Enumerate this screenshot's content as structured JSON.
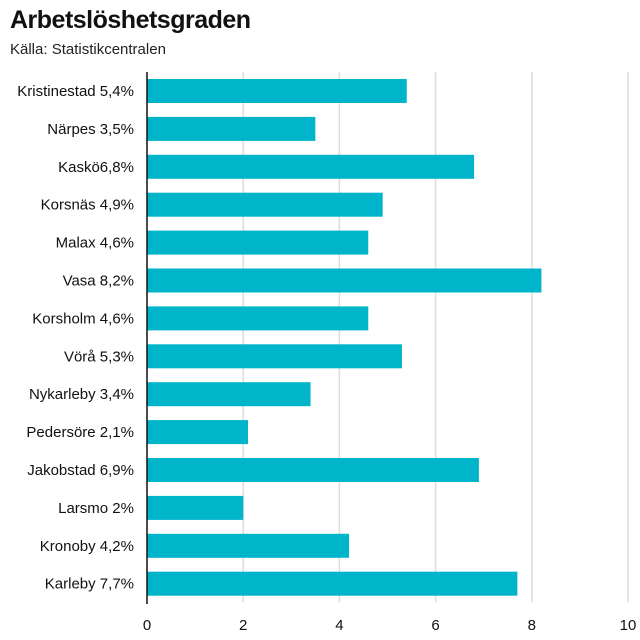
{
  "chart_data": {
    "type": "bar",
    "orientation": "horizontal",
    "title": "Arbetslöshetsgraden",
    "subtitle": "Källa: Statistikcentralen",
    "categories": [
      "Kristinestad 5,4%",
      "Närpes 3,5%",
      "Kaskö6,8%",
      "Korsnäs 4,9%",
      "Malax 4,6%",
      "Vasa 8,2%",
      "Korsholm 4,6%",
      "Vörå 5,3%",
      "Nykarleby 3,4%",
      "Pedersöre 2,1%",
      "Jakobstad 6,9%",
      "Larsmo 2%",
      "Kronoby 4,2%",
      "Karleby 7,7%"
    ],
    "values": [
      5.4,
      3.5,
      6.8,
      4.9,
      4.6,
      8.2,
      4.6,
      5.3,
      3.4,
      2.1,
      6.9,
      2.0,
      4.2,
      7.7
    ],
    "xlim": [
      0,
      10
    ],
    "xticks": [
      "0",
      "2",
      "4",
      "6",
      "8",
      "10"
    ],
    "grid": true,
    "bar_color": "#00b5c9",
    "grid_color": "#dddddd",
    "axis_color": "#111111"
  }
}
